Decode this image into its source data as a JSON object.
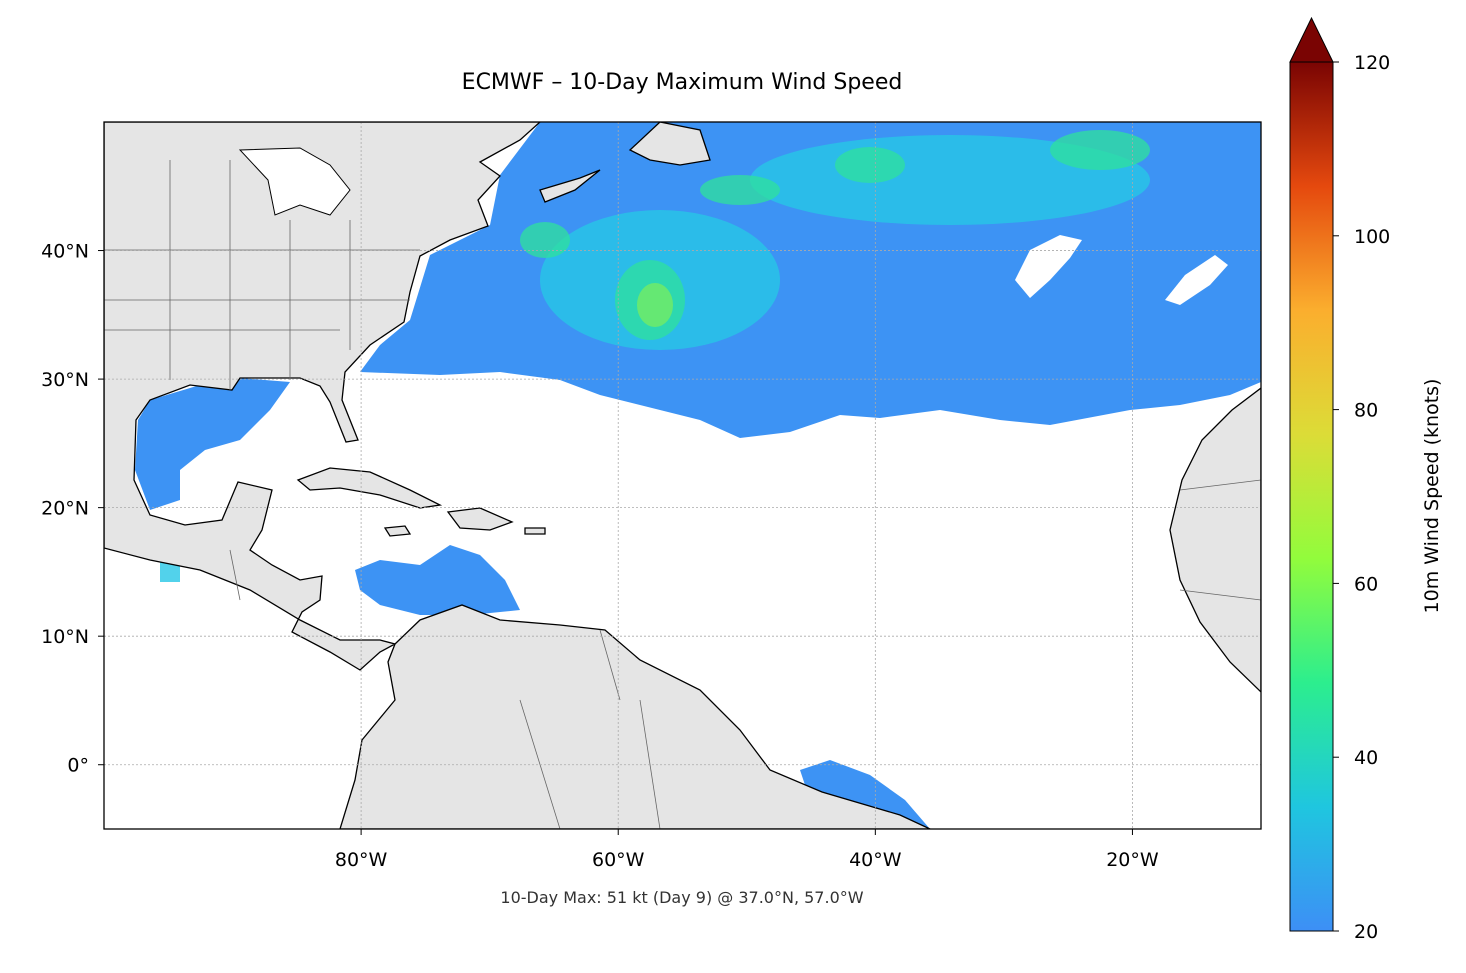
{
  "chart_data": {
    "type": "map",
    "title": "ECMWF – 10-Day Maximum Wind Speed",
    "annotation": "10-Day Max: 51 kt (Day 9) @ 37.0°N, 57.0°W",
    "xlim": [
      -100,
      -10
    ],
    "ylim": [
      -5,
      50
    ],
    "xticks": [
      {
        "value": -80,
        "label": "80°W"
      },
      {
        "value": -60,
        "label": "60°W"
      },
      {
        "value": -40,
        "label": "40°W"
      },
      {
        "value": -20,
        "label": "20°W"
      }
    ],
    "yticks": [
      {
        "value": 0,
        "label": "0°"
      },
      {
        "value": 10,
        "label": "10°N"
      },
      {
        "value": 20,
        "label": "20°N"
      },
      {
        "value": 30,
        "label": "30°N"
      },
      {
        "value": 40,
        "label": "40°N"
      }
    ],
    "grid": true,
    "colorbar": {
      "label": "10m Wind Speed (knots)",
      "lim": [
        20,
        120
      ],
      "ticks": [
        20,
        40,
        60,
        80,
        100,
        120
      ],
      "colors": [
        "#3d8ff6",
        "#1fc6df",
        "#2cee8e",
        "#92fc3c",
        "#dcdc37",
        "#fbae2e",
        "#e5490e",
        "#7a0403"
      ],
      "extend": "max"
    }
  }
}
